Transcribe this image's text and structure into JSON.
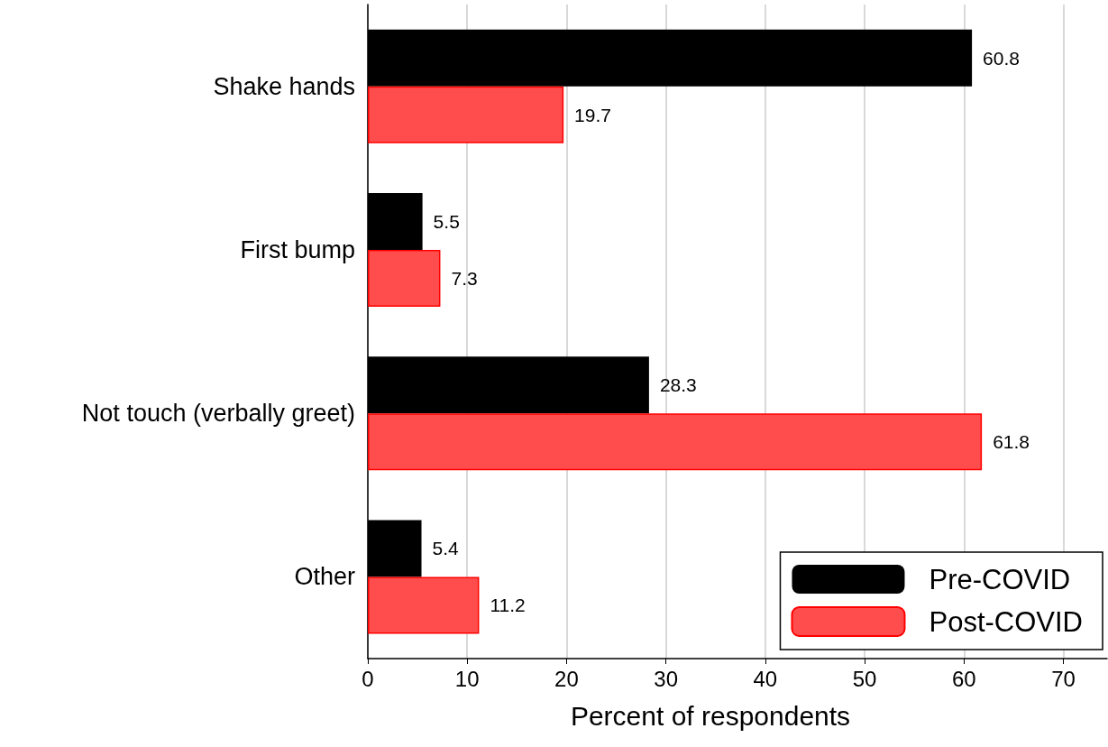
{
  "chart_data": {
    "type": "bar",
    "orientation": "horizontal",
    "xlabel": "Percent of respondents",
    "categories": [
      "Shake hands",
      "First bump",
      "Not touch (verbally greet)",
      "Other"
    ],
    "series": [
      {
        "name": "Pre-COVID",
        "color": "#000000",
        "values": [
          60.8,
          5.5,
          28.3,
          5.4
        ]
      },
      {
        "name": "Post-COVID",
        "color": "#ff4d4d",
        "values": [
          19.7,
          7.3,
          61.8,
          11.2
        ]
      }
    ],
    "xlim": [
      0,
      74.4
    ],
    "xticks": [
      0,
      10,
      20,
      30,
      40,
      50,
      60,
      70
    ],
    "grid": "x",
    "legend": "bottom right",
    "data_labels": true
  }
}
